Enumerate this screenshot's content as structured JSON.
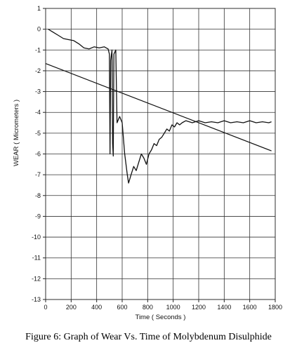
{
  "caption": "Figure 6: Graph of Wear Vs. Time of Molybdenum Disulphide",
  "chart_data": {
    "type": "line",
    "title": "",
    "xlabel": "Time ( Seconds )",
    "ylabel": "WEAR ( Micrometers )",
    "xlim": [
      0,
      1800
    ],
    "ylim": [
      -13,
      1
    ],
    "x_ticks": [
      0,
      200,
      400,
      600,
      800,
      1000,
      1200,
      1400,
      1600,
      1800
    ],
    "y_ticks": [
      1,
      0,
      -1,
      -2,
      -3,
      -4,
      -5,
      -6,
      -7,
      -8,
      -9,
      -10,
      -11,
      -12,
      -13
    ],
    "grid": true,
    "series": [
      {
        "values_description": "measured wear",
        "color": "#111111",
        "points": [
          [
            20,
            0.0
          ],
          [
            60,
            -0.15
          ],
          [
            100,
            -0.3
          ],
          [
            140,
            -0.45
          ],
          [
            180,
            -0.5
          ],
          [
            220,
            -0.55
          ],
          [
            260,
            -0.7
          ],
          [
            300,
            -0.9
          ],
          [
            340,
            -0.95
          ],
          [
            380,
            -0.85
          ],
          [
            420,
            -0.9
          ],
          [
            460,
            -0.85
          ],
          [
            490,
            -0.95
          ],
          [
            500,
            -1.2
          ],
          [
            505,
            -6.0
          ],
          [
            510,
            -1.5
          ],
          [
            520,
            -1.0
          ],
          [
            525,
            -5.5
          ],
          [
            530,
            -6.1
          ],
          [
            535,
            -1.2
          ],
          [
            550,
            -1.0
          ],
          [
            560,
            -4.5
          ],
          [
            580,
            -4.2
          ],
          [
            600,
            -4.5
          ],
          [
            620,
            -6.0
          ],
          [
            640,
            -7.0
          ],
          [
            650,
            -7.4
          ],
          [
            670,
            -7.0
          ],
          [
            690,
            -6.6
          ],
          [
            710,
            -6.8
          ],
          [
            730,
            -6.4
          ],
          [
            750,
            -6.0
          ],
          [
            770,
            -6.2
          ],
          [
            790,
            -6.5
          ],
          [
            810,
            -6.0
          ],
          [
            830,
            -5.8
          ],
          [
            850,
            -5.5
          ],
          [
            870,
            -5.6
          ],
          [
            890,
            -5.3
          ],
          [
            910,
            -5.2
          ],
          [
            930,
            -5.0
          ],
          [
            950,
            -4.8
          ],
          [
            970,
            -4.9
          ],
          [
            990,
            -4.6
          ],
          [
            1010,
            -4.7
          ],
          [
            1030,
            -4.5
          ],
          [
            1050,
            -4.6
          ],
          [
            1070,
            -4.5
          ],
          [
            1100,
            -4.4
          ],
          [
            1150,
            -4.5
          ],
          [
            1200,
            -4.4
          ],
          [
            1250,
            -4.5
          ],
          [
            1300,
            -4.45
          ],
          [
            1350,
            -4.5
          ],
          [
            1400,
            -4.4
          ],
          [
            1450,
            -4.5
          ],
          [
            1500,
            -4.45
          ],
          [
            1550,
            -4.5
          ],
          [
            1600,
            -4.4
          ],
          [
            1650,
            -4.5
          ],
          [
            1700,
            -4.45
          ],
          [
            1750,
            -4.5
          ],
          [
            1770,
            -4.45
          ]
        ]
      },
      {
        "values_description": "linear trend",
        "color": "#111111",
        "points": [
          [
            0,
            -1.65
          ],
          [
            1770,
            -5.85
          ]
        ]
      }
    ]
  }
}
